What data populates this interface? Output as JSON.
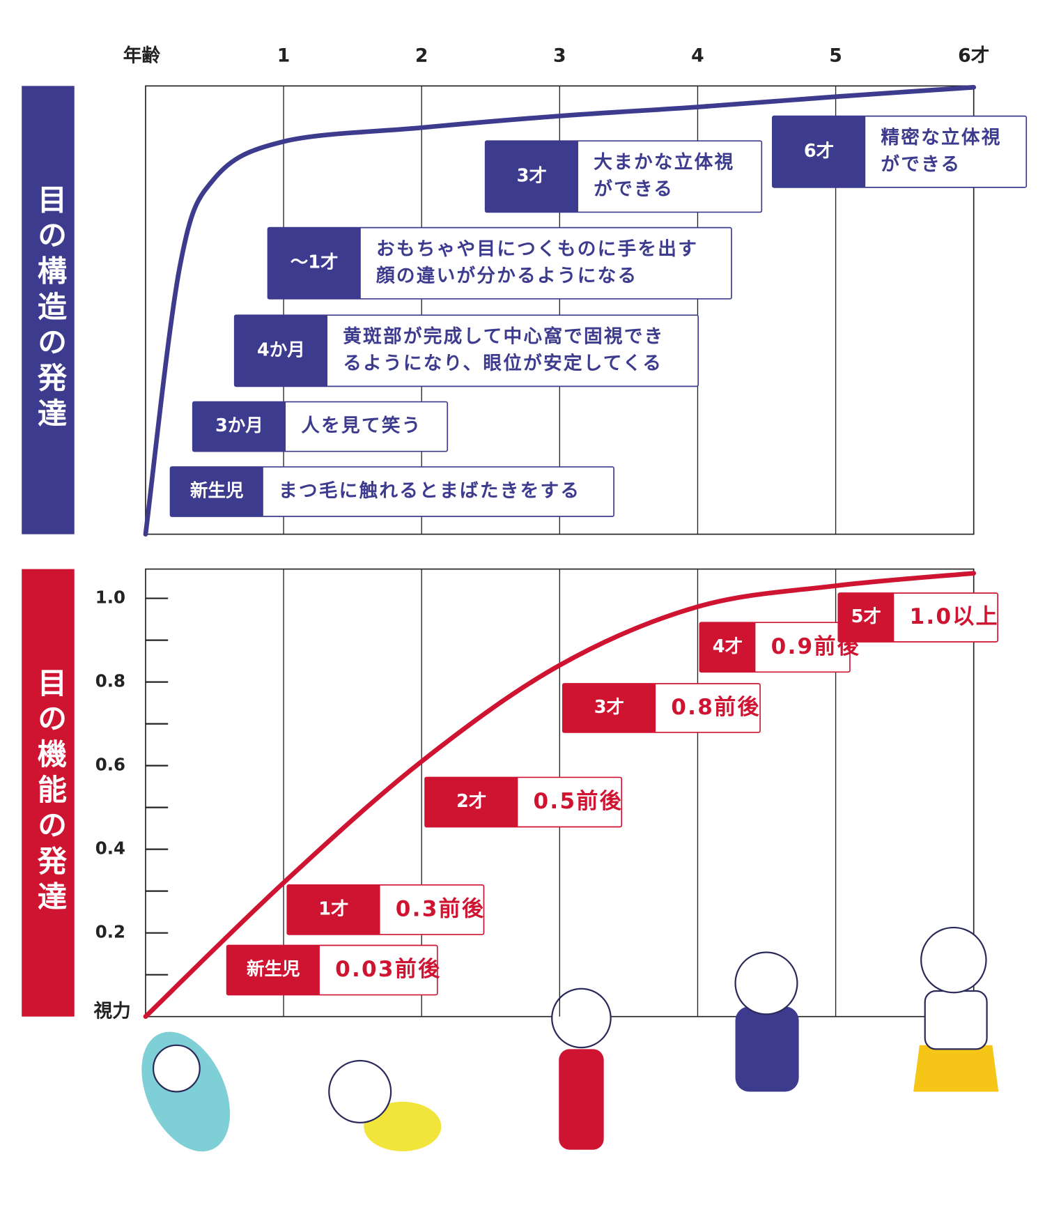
{
  "chart_data": [
    {
      "type": "line",
      "x_label": "年齢",
      "xlim": [
        0,
        6
      ],
      "xticks": [
        1,
        2,
        3,
        4,
        5,
        {
          "value": 6,
          "label": "6才"
        }
      ],
      "ylim": [
        0,
        100
      ],
      "x": [
        0,
        0.25,
        0.5,
        1,
        2,
        3,
        4,
        5,
        6
      ],
      "series": [
        {
          "name": "目の構造の発達",
          "color": "#3d3b8e",
          "values": [
            0,
            60,
            79.4,
            87.6,
            90.7,
            93.3,
            95.3,
            97.6,
            99.7
          ]
        }
      ],
      "annotations": [
        {
          "label": "新生児",
          "text": [
            "まつ毛に触れるとまばたきをする"
          ]
        },
        {
          "label": "3か月",
          "text": [
            "人を見て笑う"
          ]
        },
        {
          "label": "4か月",
          "text": [
            "黄斑部が完成して中心窩で固視でき",
            "るようになり、眼位が安定してくる"
          ]
        },
        {
          "label": "～1才",
          "text": [
            "おもちゃや目につくものに手を出す",
            "顔の違いが分かるようになる"
          ]
        },
        {
          "label": "3才",
          "text": [
            "大まかな立体視",
            "ができる"
          ]
        },
        {
          "label": "6才",
          "text": [
            "精密な立体視",
            "ができる"
          ]
        }
      ]
    },
    {
      "type": "line",
      "y_label": "視力",
      "xlim": [
        0,
        6
      ],
      "ylim": [
        0,
        1.07
      ],
      "yticks": [
        0.2,
        0.4,
        0.6,
        0.8,
        {
          "value": 1,
          "label": "1.0"
        }
      ],
      "minor_yticks": [
        0.1,
        0.3,
        0.5,
        0.7,
        0.9
      ],
      "x": [
        0,
        1,
        2,
        3,
        4,
        5,
        6
      ],
      "series": [
        {
          "name": "目の機能の発達",
          "color": "#cf1432",
          "values": [
            0,
            0.32,
            0.61,
            0.84,
            0.98,
            1.03,
            1.06
          ]
        }
      ],
      "annotations": [
        {
          "label": "新生児",
          "text": [
            "0.03前後"
          ]
        },
        {
          "label": "1才",
          "text": [
            "0.3前後"
          ]
        },
        {
          "label": "2才",
          "text": [
            "0.5前後"
          ]
        },
        {
          "label": "3才",
          "text": [
            "0.8前後"
          ]
        },
        {
          "label": "4才",
          "text": [
            "0.9前後"
          ]
        },
        {
          "label": "5才",
          "text": [
            "1.0以上"
          ]
        }
      ]
    }
  ]
}
